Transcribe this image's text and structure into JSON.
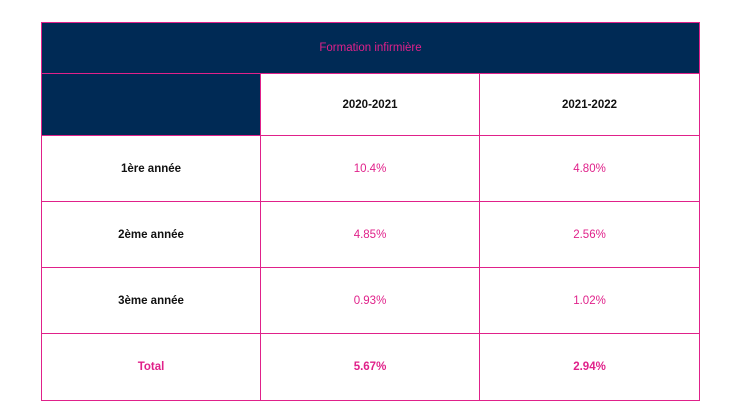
{
  "table": {
    "title": "Formation infirmière",
    "columns": [
      "",
      "2020-2021",
      "2021-2022"
    ],
    "rows": [
      {
        "label": "1ère année",
        "values": [
          "10.4%",
          "4.80%"
        ]
      },
      {
        "label": "2ème année",
        "values": [
          "4.85%",
          "2.56%"
        ]
      },
      {
        "label": "3ème année",
        "values": [
          "0.93%",
          "1.02%"
        ]
      }
    ],
    "total": {
      "label": "Total",
      "values": [
        "5.67%",
        "2.94%"
      ]
    }
  },
  "colors": {
    "header_background": "#002a55",
    "accent": "#e0218a",
    "text": "#111111"
  }
}
